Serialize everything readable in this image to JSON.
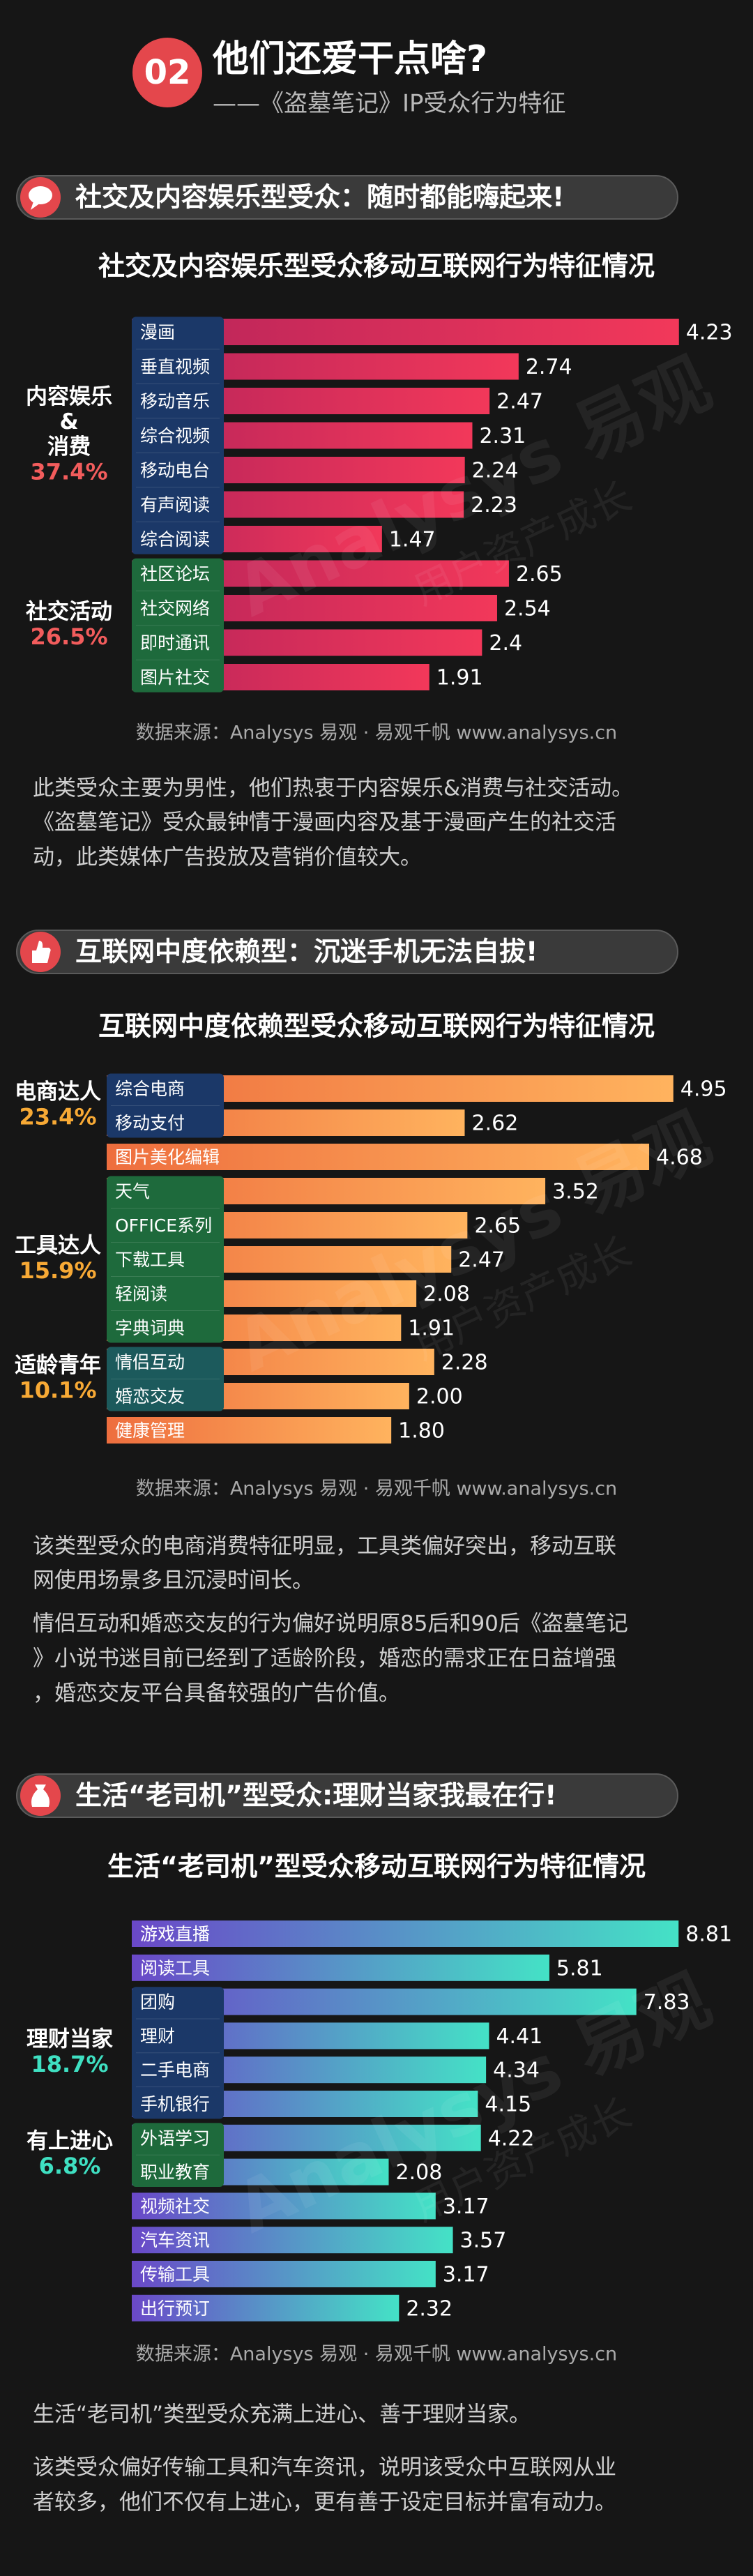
{
  "header": {
    "number": "02",
    "title": "他们还爱干点啥?",
    "subtitle": "——《盗墓笔记》IP受众行为特征"
  },
  "watermark": {
    "brand": "Analysys 易观",
    "slogan": "用户资产成长"
  },
  "sections": [
    {
      "heading": "社交及内容娱乐型受众：随时都能嗨起来!",
      "paragraphs": [
        [
          "此类受众主要为男性，他们热衷于内容娱乐&消费与社交活动。",
          "《盗墓笔记》受众最钟情于漫画内容及基于漫画产生的社交活",
          "动，此类媒体广告投放及营销价值较大。"
        ]
      ]
    },
    {
      "heading": "互联网中度依赖型：沉迷手机无法自拔!",
      "paragraphs": [
        [
          "该类型受众的电商消费特征明显，工具类偏好突出，移动互联",
          "网使用场景多且沉浸时间长。"
        ],
        [
          "情侣互动和婚恋交友的行为偏好说明原85后和90后《盗墓笔记",
          "》小说书迷目前已经到了适龄阶段，婚恋的需求正在日益增强",
          "，婚恋交友平台具备较强的广告价值。"
        ]
      ]
    },
    {
      "heading": "生活“老司机”型受众:理财当家我最在行!",
      "paragraphs": [
        [
          "生活“老司机”类型受众充满上进心、善于理财当家。"
        ],
        [
          "该类受众偏好传输工具和汽车资讯，说明该受众中互联网从业",
          "者较多，他们不仅有上进心，更有善于设定目标并富有动力。"
        ]
      ]
    }
  ],
  "chart_data": [
    {
      "type": "bar",
      "title": "社交及内容娱乐型受众移动互联网行为特征情况",
      "xlim": [
        0,
        4.4
      ],
      "color": [
        "#b8245a",
        "#f2385a"
      ],
      "share_color": "#f25c5c",
      "source": "数据来源：Analysys 易观 · 易观千帆 www.analysys.cn",
      "blocks": [
        {
          "name": [
            "内容娱乐",
            "&",
            "消费"
          ],
          "share": "37.4%",
          "box_color": "#1b3868",
          "categories": [
            "漫画",
            "垂直视频",
            "移动音乐",
            "综合视频",
            "移动电台",
            "有声阅读",
            "综合阅读"
          ],
          "values": [
            4.23,
            2.74,
            2.47,
            2.31,
            2.24,
            2.23,
            1.47
          ]
        },
        {
          "name": [
            "社交活动"
          ],
          "share": "26.5%",
          "box_color": "#1e6a3c",
          "categories": [
            "社区论坛",
            "社交网络",
            "即时通讯",
            "图片社交"
          ],
          "values": [
            2.65,
            2.54,
            2.4,
            1.91
          ]
        }
      ]
    },
    {
      "type": "bar",
      "title": "互联网中度依赖型受众移动互联网行为特征情况",
      "xlim": [
        0,
        5.1
      ],
      "color": [
        "#ee6e3e",
        "#ffb35e"
      ],
      "share_color": "#f7a935",
      "source": "数据来源：Analysys 易观 · 易观千帆 www.analysys.cn",
      "blocks": [
        {
          "name": [
            "电商达人"
          ],
          "share": "23.4%",
          "box_color": "#1b3868",
          "categories": [
            "综合电商",
            "移动支付"
          ],
          "values": [
            4.95,
            2.62
          ]
        },
        {
          "categories": [
            "图片美化编辑"
          ],
          "values": [
            4.68
          ]
        },
        {
          "name": [
            "工具达人"
          ],
          "share": "15.9%",
          "box_color": "#1e6a3c",
          "categories": [
            "天气",
            "OFFICE系列",
            "下载工具",
            "轻阅读",
            "字典词典"
          ],
          "values": [
            3.52,
            2.65,
            2.47,
            2.08,
            1.91
          ]
        },
        {
          "name": [
            "适龄青年"
          ],
          "share": "10.1%",
          "box_color": "#1c5a5c",
          "categories": [
            "情侣互动",
            "婚恋交友"
          ],
          "values": [
            2.28,
            2
          ],
          "value_labels": [
            "2.28",
            "2.00"
          ]
        },
        {
          "categories": [
            "健康管理"
          ],
          "values": [
            1.8
          ],
          "value_labels": [
            "1.80"
          ]
        }
      ]
    },
    {
      "type": "bar",
      "title": "生活“老司机”型受众移动互联网行为特征情况",
      "xlim": [
        0,
        9
      ],
      "color": [
        "#6a48c8",
        "#44e2c6"
      ],
      "share_color": "#3fe0c2",
      "source": "数据来源：Analysys 易观 · 易观千帆 www.analysys.cn",
      "blocks": [
        {
          "categories": [
            "游戏直播",
            "阅读工具"
          ],
          "values": [
            8.81,
            5.81
          ]
        },
        {
          "name": [
            "理财当家"
          ],
          "share": "18.7%",
          "box_color": "#1b3868",
          "categories": [
            "团购",
            "理财",
            "二手电商",
            "手机银行"
          ],
          "values": [
            7.83,
            4.41,
            4.34,
            4.15
          ]
        },
        {
          "name": [
            "有上进心"
          ],
          "share": "6.8%",
          "box_color": "#1e6a3c",
          "categories": [
            "外语学习",
            "职业教育"
          ],
          "values": [
            4.22,
            2.08
          ]
        },
        {
          "categories": [
            "视频社交",
            "汽车资讯",
            "传输工具",
            "出行预订"
          ],
          "values": [
            3.17,
            3.57,
            3.17,
            2.32
          ]
        }
      ]
    }
  ]
}
